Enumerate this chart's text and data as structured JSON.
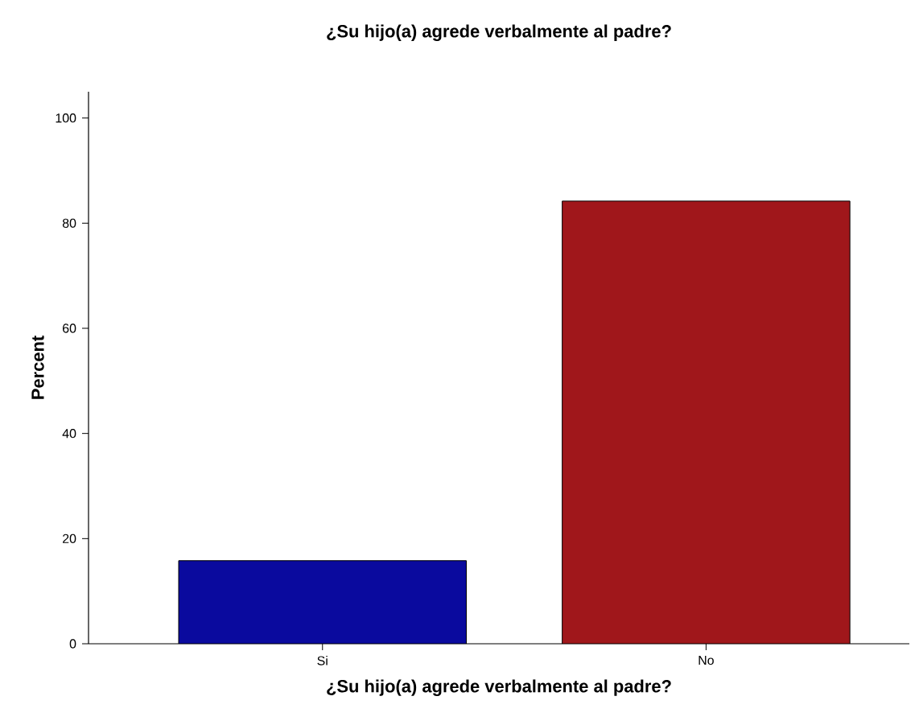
{
  "chart_data": {
    "type": "bar",
    "title": "¿Su hijo(a) agrede verbalmente al padre?",
    "xlabel": "¿Su hijo(a) agrede verbalmente al padre?",
    "ylabel": "Percent",
    "categories": [
      "Si",
      "No"
    ],
    "values": [
      15.8,
      84.2
    ],
    "colors": [
      "#0a0a9e",
      "#a0171b"
    ],
    "ylim": [
      0,
      105
    ],
    "yticks": [
      0,
      20,
      40,
      60,
      80,
      100
    ],
    "grid": false
  }
}
